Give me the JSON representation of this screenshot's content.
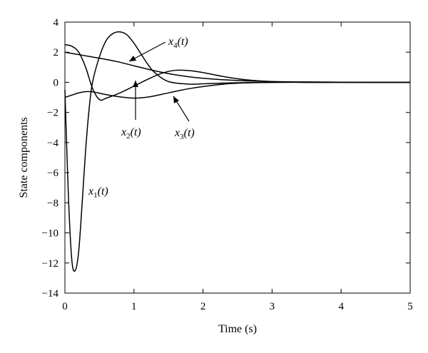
{
  "chart_data": {
    "type": "line",
    "title": "",
    "xlabel": "Time (s)",
    "ylabel": "State components",
    "xlim": [
      0,
      5
    ],
    "ylim": [
      -14,
      4
    ],
    "xticks": [
      0,
      1,
      2,
      3,
      4,
      5
    ],
    "yticks": [
      4,
      2,
      0,
      -2,
      -4,
      -6,
      -8,
      -10,
      -12,
      -14
    ],
    "grid": false,
    "legend": "none",
    "series": [
      {
        "name": "x1(t)",
        "label_base": "x",
        "label_sub": "1",
        "label_suffix": "(t)",
        "x": [
          0,
          0.05,
          0.1,
          0.15,
          0.2,
          0.25,
          0.3,
          0.35,
          0.4,
          0.5,
          0.6,
          0.7,
          0.8,
          0.9,
          1.0,
          1.1,
          1.2,
          1.3,
          1.5,
          1.8,
          2.0,
          2.3,
          2.6,
          3.0,
          3.5,
          4.0,
          4.5,
          5.0
        ],
        "y": [
          -0.5,
          -7.5,
          -11.8,
          -12.5,
          -11.2,
          -8.0,
          -4.5,
          -1.8,
          0.0,
          1.7,
          2.8,
          3.25,
          3.35,
          3.15,
          2.6,
          1.9,
          1.2,
          0.65,
          0.05,
          -0.12,
          -0.1,
          -0.05,
          -0.02,
          0.0,
          0.0,
          0.0,
          0.0,
          0.0
        ]
      },
      {
        "name": "x2(t)",
        "label_base": "x",
        "label_sub": "2",
        "label_suffix": "(t)",
        "x": [
          0,
          0.1,
          0.2,
          0.3,
          0.4,
          0.5,
          0.6,
          0.8,
          1.0,
          1.2,
          1.4,
          1.6,
          1.8,
          2.0,
          2.3,
          2.6,
          3.0,
          3.5,
          4.0,
          4.5,
          5.0
        ],
        "y": [
          -1.0,
          -0.85,
          -0.7,
          -0.62,
          -0.63,
          -0.72,
          -0.82,
          -0.97,
          -1.05,
          -0.98,
          -0.8,
          -0.6,
          -0.42,
          -0.28,
          -0.12,
          -0.04,
          0.0,
          0.02,
          0.01,
          0.0,
          0.0
        ]
      },
      {
        "name": "x3(t)",
        "label_base": "x",
        "label_sub": "3",
        "label_suffix": "(t)",
        "x": [
          0,
          0.1,
          0.2,
          0.3,
          0.4,
          0.5,
          0.6,
          0.8,
          1.0,
          1.2,
          1.4,
          1.6,
          1.8,
          2.0,
          2.3,
          2.6,
          3.0,
          3.5,
          4.0,
          4.5,
          5.0
        ],
        "y": [
          2.5,
          2.4,
          2.0,
          1.0,
          -0.4,
          -1.15,
          -1.05,
          -0.7,
          -0.25,
          0.2,
          0.6,
          0.8,
          0.78,
          0.65,
          0.38,
          0.18,
          0.05,
          0.0,
          0.0,
          0.0,
          0.0
        ]
      },
      {
        "name": "x4(t)",
        "label_base": "x",
        "label_sub": "4",
        "label_suffix": "(t)",
        "x": [
          0,
          0.25,
          0.5,
          0.75,
          1.0,
          1.25,
          1.5,
          1.75,
          2.0,
          2.5,
          3.0,
          3.5,
          4.0,
          4.5,
          5.0
        ],
        "y": [
          2.0,
          1.8,
          1.6,
          1.38,
          1.1,
          0.82,
          0.58,
          0.4,
          0.27,
          0.12,
          0.05,
          0.02,
          0.01,
          0.0,
          0.0
        ]
      }
    ]
  }
}
